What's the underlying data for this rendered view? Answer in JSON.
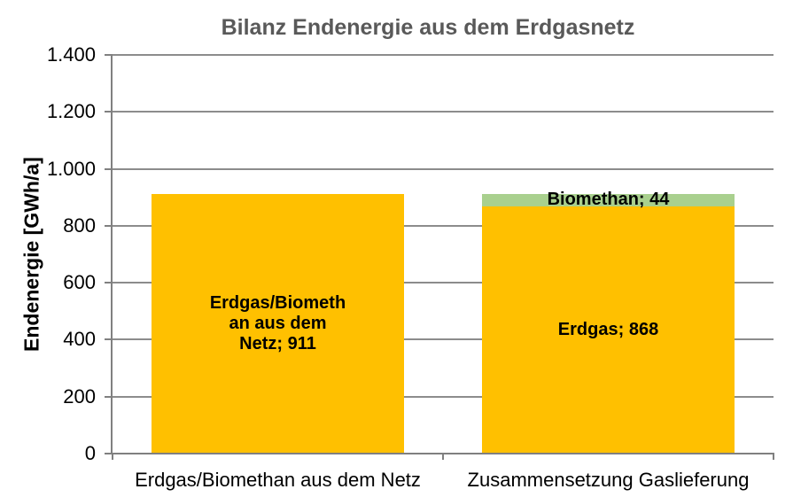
{
  "chart_data": {
    "type": "bar",
    "stacked": true,
    "title": "Bilanz Endenergie aus dem Erdgasnetz",
    "ylabel": "Endenergie [GWh/a]",
    "xlabel": "",
    "ylim": [
      0,
      1400
    ],
    "yticks": [
      0,
      200,
      400,
      600,
      800,
      1000,
      1200,
      1400
    ],
    "ytick_labels": [
      "0",
      "200",
      "400",
      "600",
      "800",
      "1.000",
      "1.200",
      "1.400"
    ],
    "grid": true,
    "legend": false,
    "categories": [
      "Erdgas/Biomethan aus dem Netz",
      "Zusammensetzung Gaslieferung"
    ],
    "bars": [
      {
        "category": "Erdgas/Biomethan aus dem Netz",
        "segments": [
          {
            "name": "Erdgas/Biomethan aus dem Netz",
            "value": 911,
            "color": "#FFC000",
            "label": "Erdgas/Biometh\nan aus dem\nNetz; 911"
          }
        ]
      },
      {
        "category": "Zusammensetzung Gaslieferung",
        "segments": [
          {
            "name": "Erdgas",
            "value": 868,
            "color": "#FFC000",
            "label": "Erdgas; 868"
          },
          {
            "name": "Biomethan",
            "value": 44,
            "color": "#A9D08E",
            "label": "Biomethan; 44"
          }
        ]
      }
    ],
    "colors": {
      "erdgas": "#FFC000",
      "biomethan": "#A9D08E",
      "title": "#595959",
      "axis": "#808080",
      "gridline": "#8C8C8C",
      "text": "#000000"
    }
  }
}
